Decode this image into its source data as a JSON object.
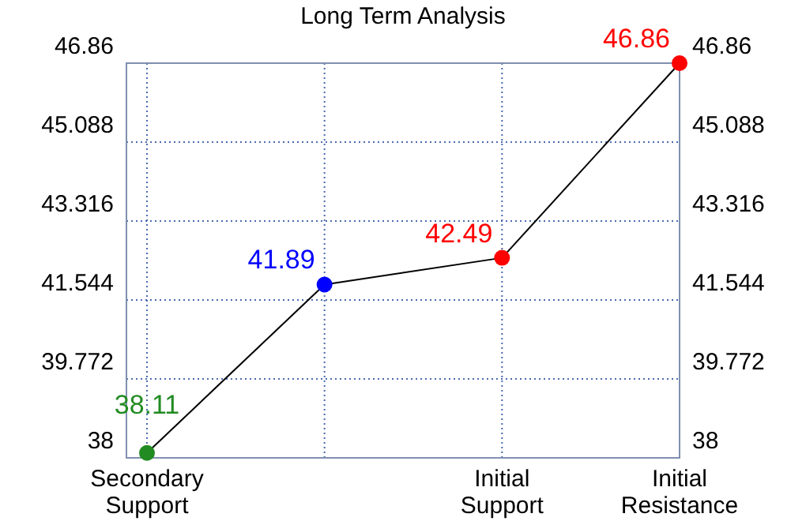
{
  "chart_data": {
    "type": "line",
    "title": "Long Term Analysis",
    "categories": [
      "Secondary Support",
      null,
      "Initial Support",
      "Initial Resistance"
    ],
    "ylim": [
      38,
      46.86
    ],
    "yticks": [
      38,
      39.772,
      41.544,
      43.316,
      45.088,
      46.86
    ],
    "y2lim": [
      38,
      46.86
    ],
    "y2ticks": [
      38,
      39.772,
      41.544,
      43.316,
      45.088,
      46.86
    ],
    "grid": true,
    "marker": "circle",
    "data_labels": true,
    "series": [
      {
        "values": [
          38.11,
          41.89,
          42.49,
          46.86
        ],
        "color": "#000000",
        "colors": [
          "#228b22",
          "#0000ff",
          "#ff0000",
          "#ff0000"
        ]
      }
    ]
  }
}
